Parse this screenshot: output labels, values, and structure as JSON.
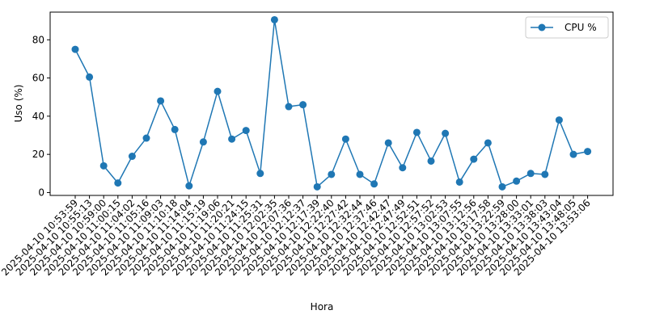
{
  "chart_data": {
    "type": "line",
    "xlabel": "Hora",
    "ylabel": "Uso (%)",
    "ylim": [
      -1.5,
      94.5
    ],
    "yticks": [
      0,
      20,
      40,
      60,
      80
    ],
    "grid": false,
    "legend_position": "top-right",
    "x": [
      "2025-04-10 10:53:59",
      "2025-04-10 10:55:13",
      "2025-04-10 10:59:00",
      "2025-04-10 11:00:15",
      "2025-04-10 11:04:02",
      "2025-04-10 11:05:16",
      "2025-04-10 11:09:03",
      "2025-04-10 11:10:18",
      "2025-04-10 11:14:04",
      "2025-04-10 11:15:19",
      "2025-04-10 11:19:06",
      "2025-04-10 11:20:21",
      "2025-04-10 11:24:15",
      "2025-04-10 11:25:31",
      "2025-04-10 12:02:35",
      "2025-04-10 12:07:36",
      "2025-04-10 12:12:37",
      "2025-04-10 12:17:39",
      "2025-04-10 12:22:40",
      "2025-04-10 12:27:42",
      "2025-04-10 12:32:44",
      "2025-04-10 12:37:46",
      "2025-04-10 12:42:47",
      "2025-04-10 12:47:49",
      "2025-04-10 12:52:51",
      "2025-04-10 12:57:52",
      "2025-04-10 13:02:53",
      "2025-04-10 13:07:55",
      "2025-04-10 13:12:56",
      "2025-04-10 13:17:58",
      "2025-04-10 13:22:59",
      "2025-04-10 13:28:00",
      "2025-04-10 13:33:01",
      "2025-04-10 13:38:03",
      "2025-04-10 13:43:04",
      "2025-04-10 13:48:05",
      "2025-04-10 13:53:06"
    ],
    "series": [
      {
        "name": "CPU %",
        "color": "#1f77b4",
        "marker": "circle",
        "values": [
          75,
          60.5,
          14,
          5,
          19,
          28.5,
          48,
          33,
          3.5,
          26.5,
          53,
          28,
          32.5,
          10,
          90.5,
          45,
          46,
          3,
          9.5,
          28,
          9.5,
          4.5,
          26,
          13,
          31.5,
          16.5,
          31,
          5.5,
          17.5,
          26,
          3,
          6,
          10,
          9.5,
          38,
          20,
          21.5
        ]
      }
    ]
  }
}
